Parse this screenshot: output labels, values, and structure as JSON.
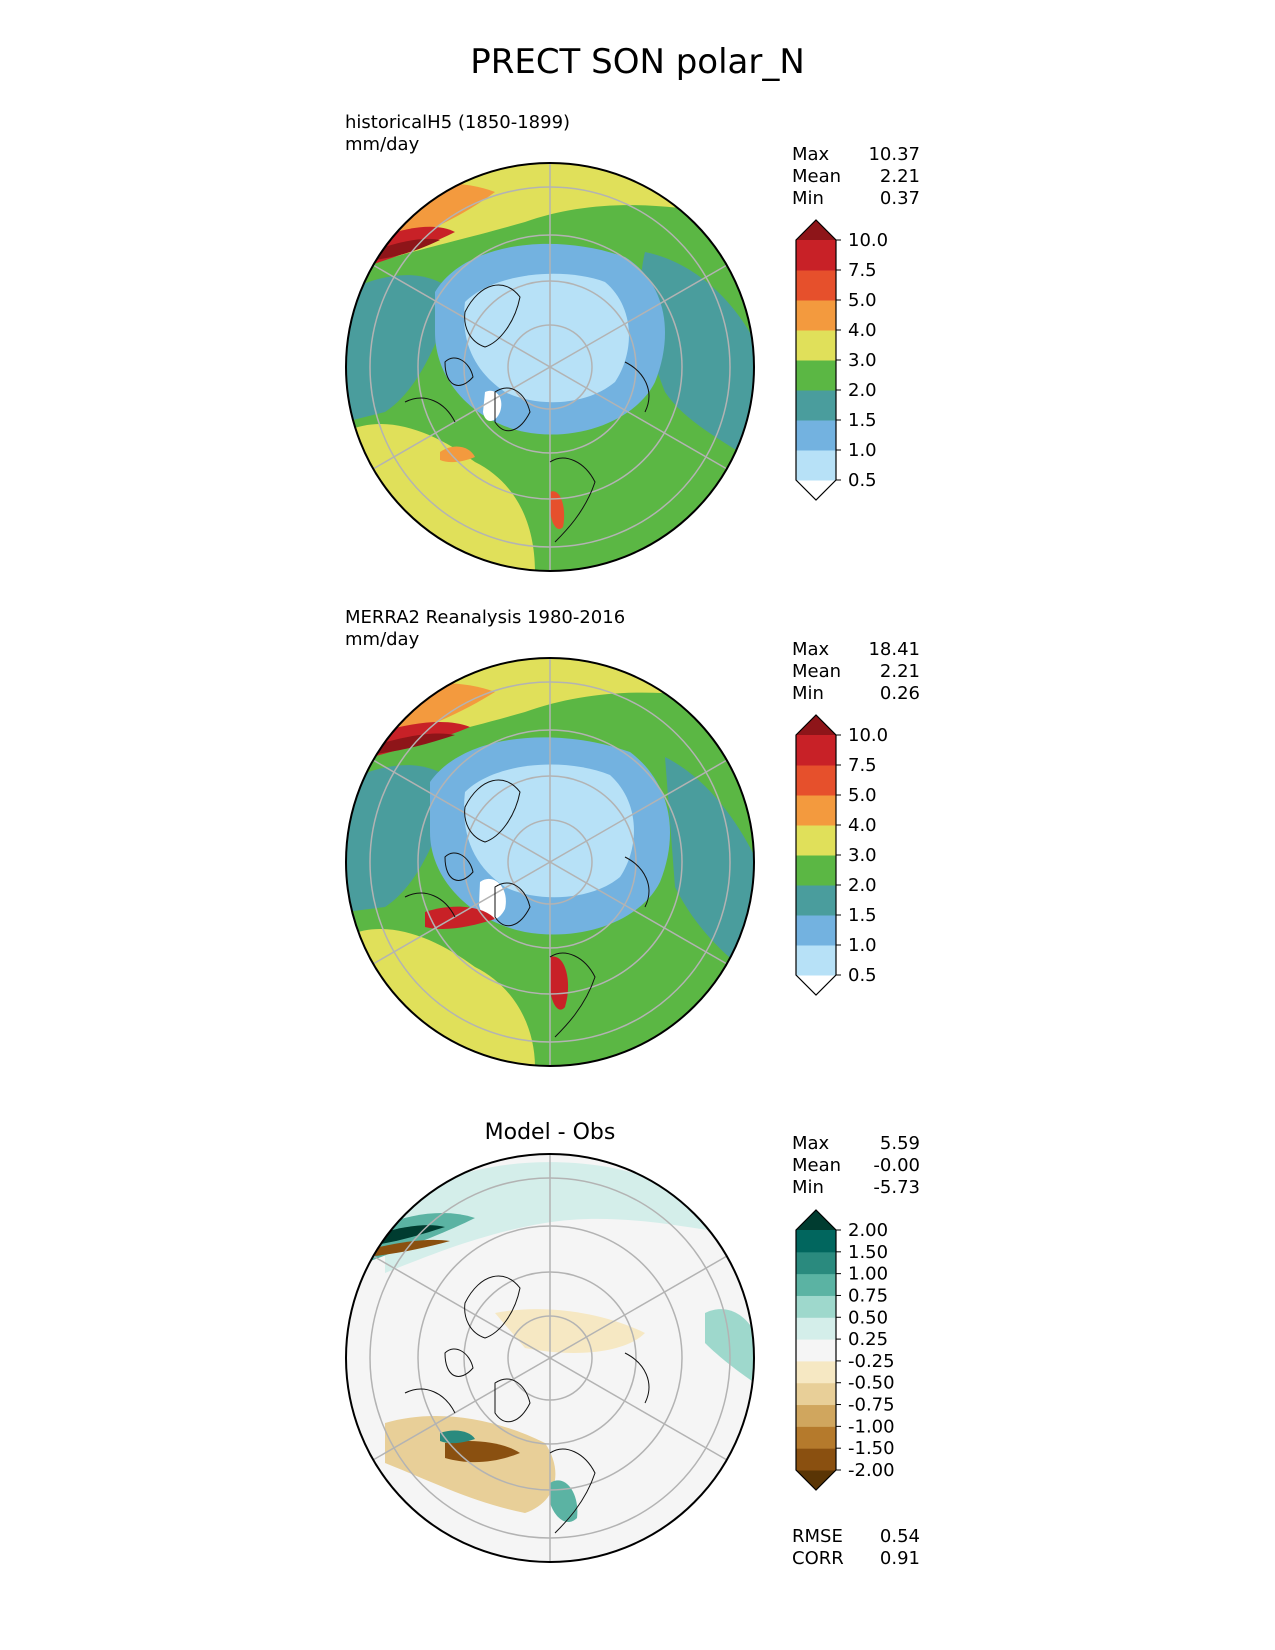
{
  "figure": {
    "title": "PRECT SON polar_N"
  },
  "panels": [
    {
      "id": "model",
      "label_line1": "historicalH5 (1850-1899)",
      "label_line2": "mm/day",
      "stats": {
        "max_label": "Max",
        "max": "10.37",
        "mean_label": "Mean",
        "mean": "2.21",
        "min_label": "Min",
        "min": "0.37"
      },
      "colorbar": {
        "colors": [
          "#ffffff",
          "#b7e1f7",
          "#73b2e0",
          "#4a9d9d",
          "#5bb744",
          "#e0e05a",
          "#f39a3e",
          "#e6502c",
          "#c82127",
          "#8e1519"
        ],
        "ticks": [
          "0.5",
          "1.0",
          "1.5",
          "2.0",
          "3.0",
          "4.0",
          "5.0",
          "7.5",
          "10.0"
        ]
      }
    },
    {
      "id": "obs",
      "label_line1": "MERRA2 Reanalysis 1980-2016",
      "label_line2": "mm/day",
      "stats": {
        "max_label": "Max",
        "max": "18.41",
        "mean_label": "Mean",
        "mean": "2.21",
        "min_label": "Min",
        "min": "0.26"
      },
      "colorbar": {
        "colors": [
          "#ffffff",
          "#b7e1f7",
          "#73b2e0",
          "#4a9d9d",
          "#5bb744",
          "#e0e05a",
          "#f39a3e",
          "#e6502c",
          "#c82127",
          "#8e1519"
        ],
        "ticks": [
          "0.5",
          "1.0",
          "1.5",
          "2.0",
          "3.0",
          "4.0",
          "5.0",
          "7.5",
          "10.0"
        ]
      }
    },
    {
      "id": "diff",
      "title": "Model - Obs",
      "stats": {
        "max_label": "Max",
        "max": "5.59",
        "mean_label": "Mean",
        "mean": "-0.00",
        "min_label": "Min",
        "min": "-5.73"
      },
      "colorbar": {
        "colors": [
          "#5a3505",
          "#8a5010",
          "#b57a2c",
          "#d0a65e",
          "#e8cf98",
          "#f6e8c3",
          "#f5f5f5",
          "#d4eeea",
          "#9ed8cc",
          "#5bb3a3",
          "#2a8a7e",
          "#01665e",
          "#003c30"
        ],
        "ticks": [
          "-2.00",
          "-1.50",
          "-1.00",
          "-0.75",
          "-0.50",
          "-0.25",
          "0.25",
          "0.50",
          "0.75",
          "1.00",
          "1.50",
          "2.00"
        ]
      },
      "metrics": {
        "rmse_label": "RMSE",
        "rmse": "0.54",
        "corr_label": "CORR",
        "corr": "0.91"
      }
    }
  ]
}
